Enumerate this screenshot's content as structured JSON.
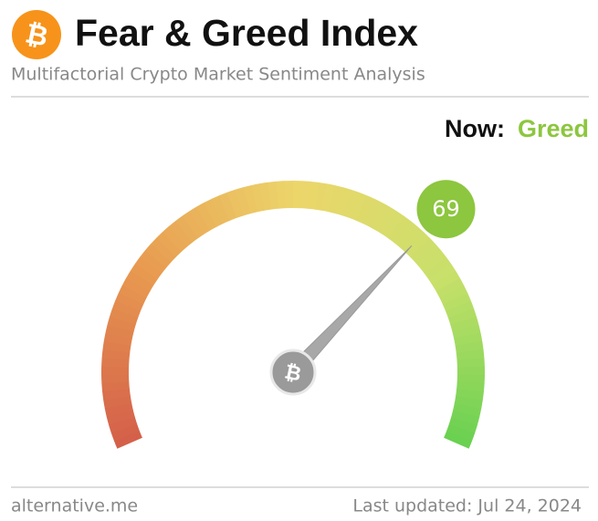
{
  "chart_data": {
    "type": "gauge",
    "logo": "₿",
    "title": "Fear & Greed Index",
    "subtitle": "Multifactorial Crypto Market Sentiment Analysis",
    "now_label": "Now:",
    "classification": "Greed",
    "color": "#8dc63f",
    "value": 69,
    "range": [
      0,
      100
    ],
    "source": "alternative.me",
    "last_updated": "Last updated: Jul 24, 2024"
  }
}
